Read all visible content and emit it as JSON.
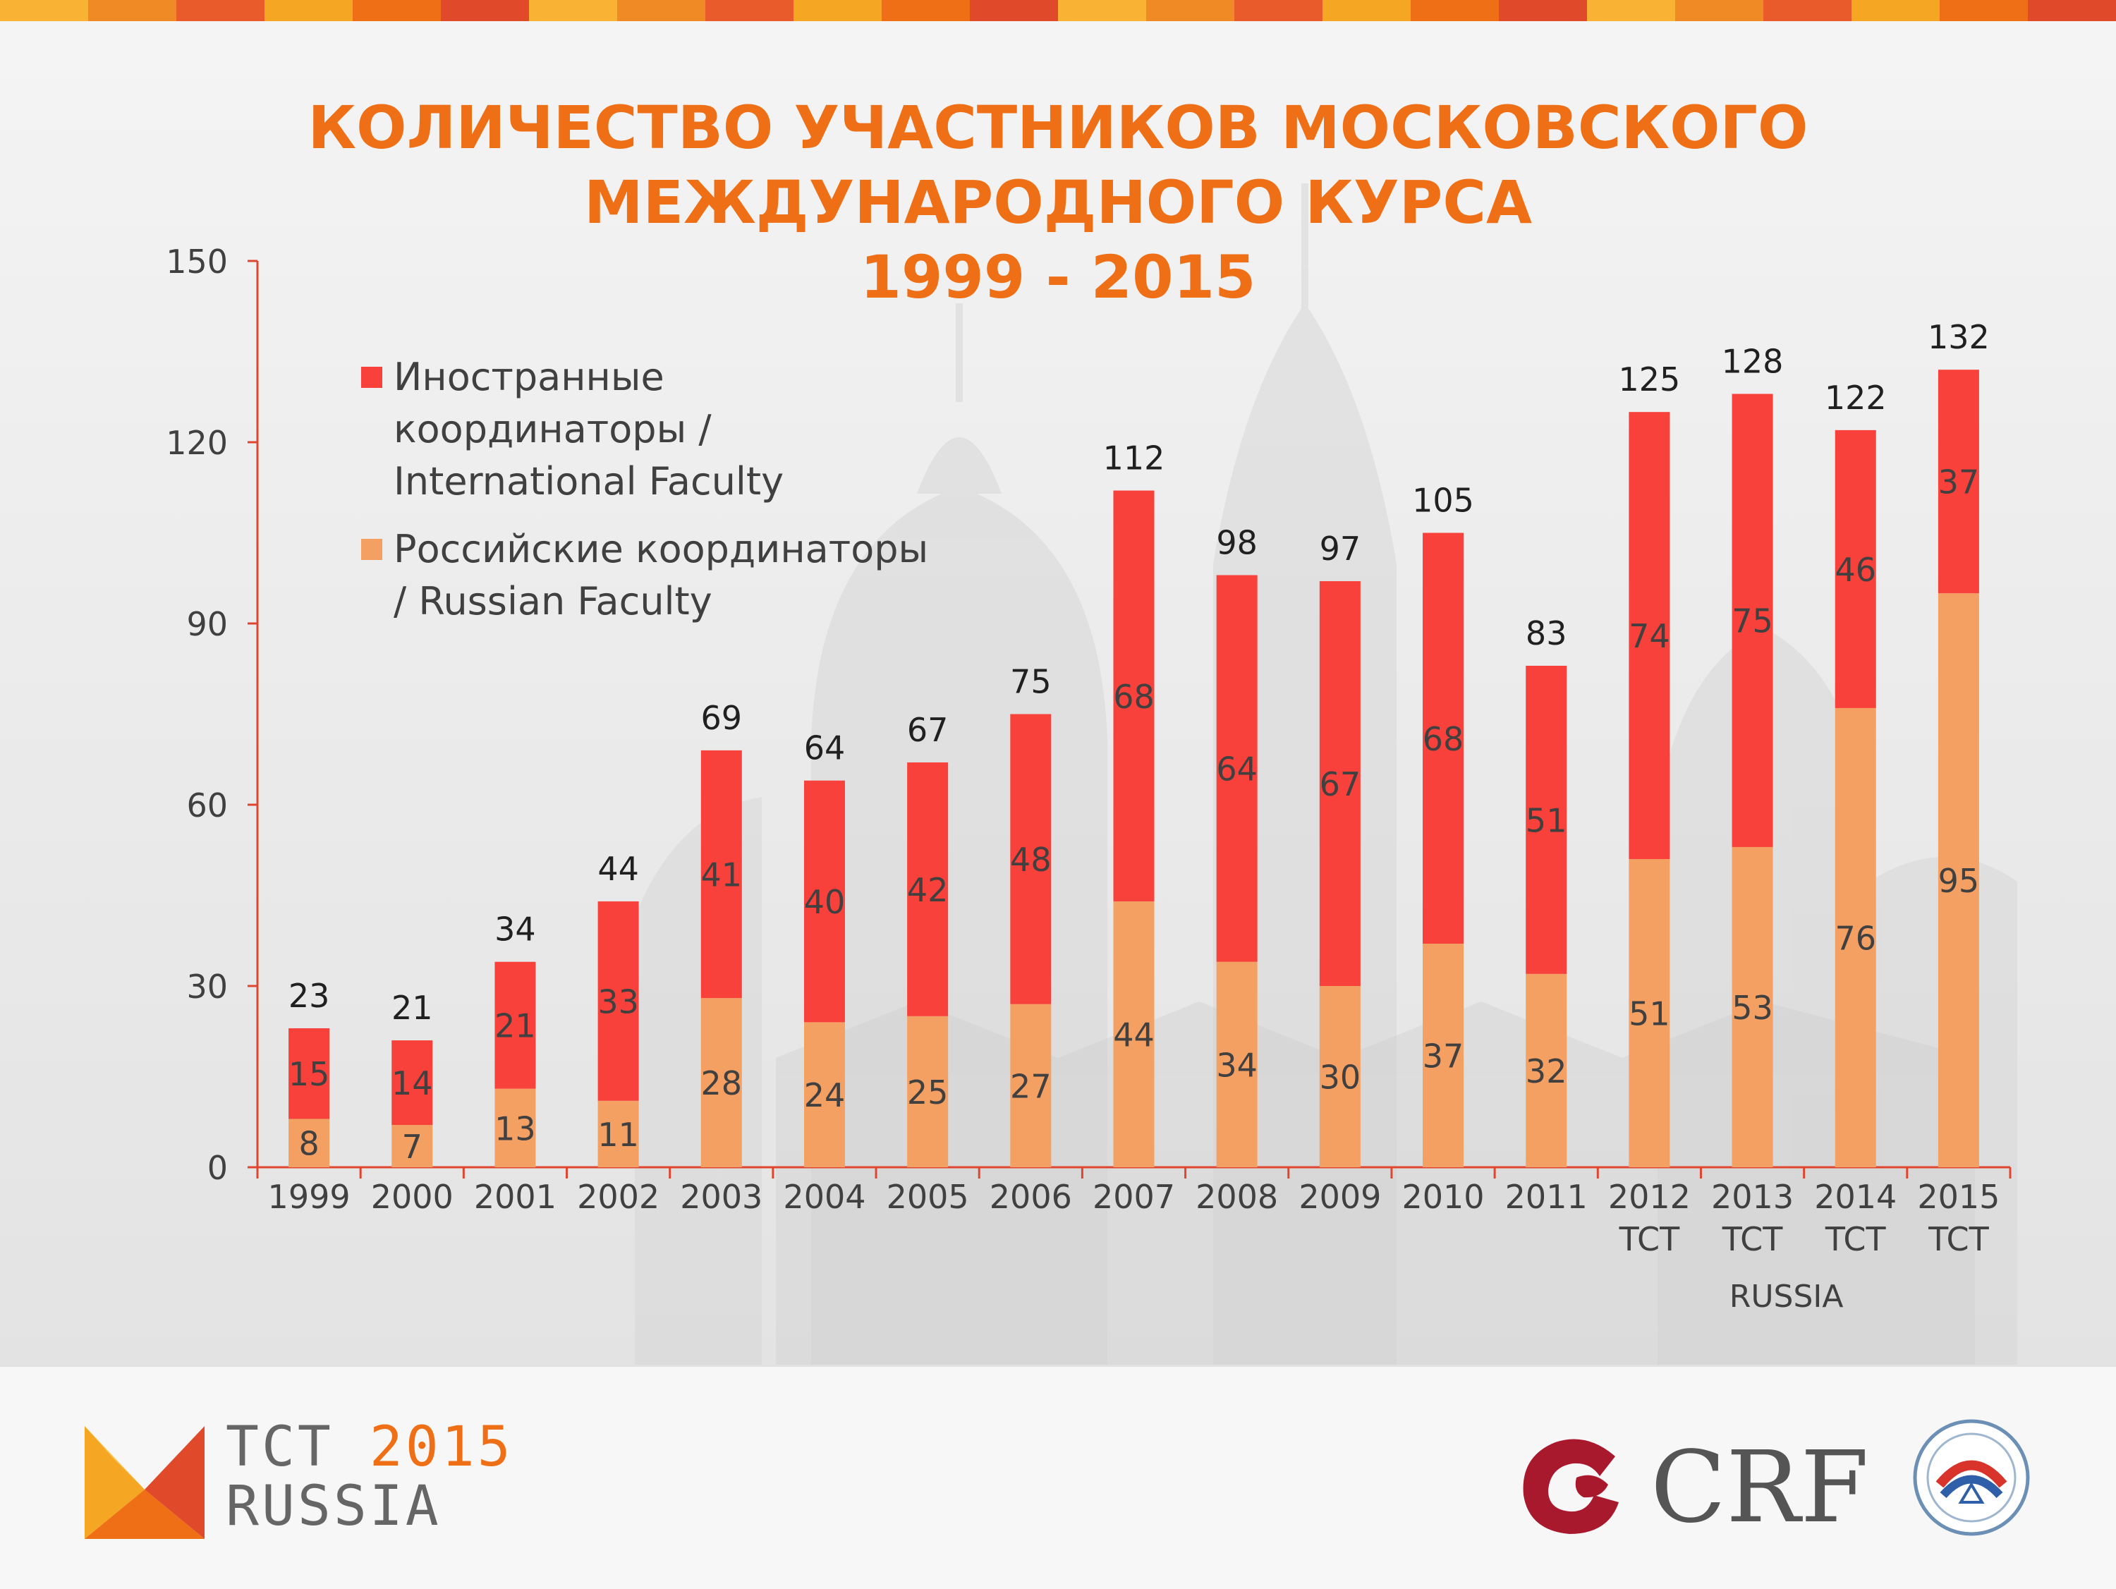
{
  "title": {
    "line1": "КОЛИЧЕСТВО УЧАСТНИКОВ МОСКОВСКОГО",
    "line2": "МЕЖДУНАРОДНОГО КУРСА",
    "line3": "1999 - 2015"
  },
  "colors": {
    "title": "#ef6f16",
    "international": "#f9413b",
    "russian": "#f5a063",
    "axis": "#e0462f",
    "band": [
      "#f5a623",
      "#ef6f16",
      "#e04a2b",
      "#f9b233",
      "#f08a24",
      "#e95b2a"
    ]
  },
  "legend": [
    {
      "label": "Иностранные\nкоординаторы /\nInternational Faculty",
      "color": "#f9413b"
    },
    {
      "label": "Российские координаторы\n/ Russian Faculty",
      "color": "#f5a063"
    }
  ],
  "chart_data": {
    "type": "bar",
    "stacked": true,
    "categories": [
      "1999",
      "2000",
      "2001",
      "2002",
      "2003",
      "2004",
      "2005",
      "2006",
      "2007",
      "2008",
      "2009",
      "2010",
      "2011",
      "2012\nTCT",
      "2013\nTCT",
      "2014\nTCT",
      "2015\nTCT"
    ],
    "category_group_label": "RUSSIA",
    "series": [
      {
        "name": "Российские координаторы / Russian Faculty",
        "color": "#f5a063",
        "values": [
          8,
          7,
          13,
          11,
          28,
          24,
          25,
          27,
          44,
          34,
          30,
          37,
          32,
          51,
          53,
          76,
          95
        ]
      },
      {
        "name": "Иностранные координаторы / International Faculty",
        "color": "#f9413b",
        "values": [
          15,
          14,
          21,
          33,
          41,
          40,
          42,
          48,
          68,
          64,
          67,
          68,
          51,
          74,
          75,
          46,
          37
        ]
      }
    ],
    "totals": [
      23,
      21,
      34,
      44,
      69,
      64,
      67,
      75,
      112,
      98,
      97,
      105,
      83,
      125,
      128,
      122,
      132
    ],
    "yticks": [
      0,
      30,
      60,
      90,
      120,
      150
    ],
    "ylim": [
      0,
      150
    ],
    "grid": false,
    "legend_position": "top-left"
  },
  "footer": {
    "tct_logo": {
      "line1_prefix": "TCT ",
      "line1_year": "2015",
      "line2": "RUSSIA"
    },
    "crf_logo": {
      "text": "CRF"
    },
    "seal": {
      "name": "society-seal-icon"
    }
  }
}
